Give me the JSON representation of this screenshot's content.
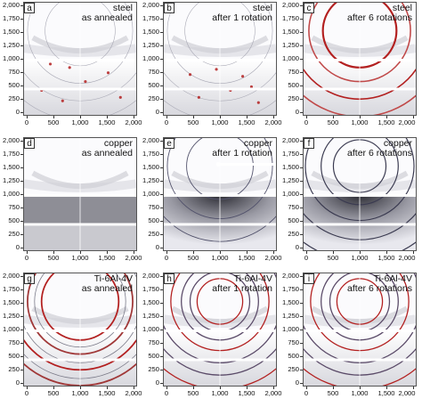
{
  "figure": {
    "y_ticks": [
      "0",
      "250",
      "500",
      "750",
      "1,000",
      "1,250",
      "1,500",
      "1,750",
      "2,000"
    ],
    "x_ticks": [
      "0",
      "500",
      "1,000",
      "1,500",
      "2,000"
    ],
    "colors": {
      "ring": "#b32020",
      "dark_ring": "#303048",
      "frame": "#555555"
    },
    "panels": [
      {
        "letter": "a",
        "material": "steel",
        "condition": "as annealed",
        "pattern": "steel-spots"
      },
      {
        "letter": "b",
        "material": "steel",
        "condition": "after 1 rotation",
        "pattern": "steel-spots2"
      },
      {
        "letter": "c",
        "material": "steel",
        "condition": "after 6 rotations",
        "pattern": "red-rings"
      },
      {
        "letter": "d",
        "material": "copper",
        "condition": "as annealed",
        "pattern": "copper-plain"
      },
      {
        "letter": "e",
        "material": "copper",
        "condition": "after 1 rotation",
        "pattern": "copper-dark"
      },
      {
        "letter": "f",
        "material": "copper",
        "condition": "after 6 rotations",
        "pattern": "copper-rings"
      },
      {
        "letter": "g",
        "material": "Ti-6Al-4V",
        "condition": "as annealed",
        "pattern": "ti-red"
      },
      {
        "letter": "h",
        "material": "Ti-6Al-4V",
        "condition": "after 1 rotation",
        "pattern": "ti-rings"
      },
      {
        "letter": "i",
        "material": "Ti-6Al-4V",
        "condition": "after 6 rotations",
        "pattern": "ti-rings2"
      }
    ]
  }
}
